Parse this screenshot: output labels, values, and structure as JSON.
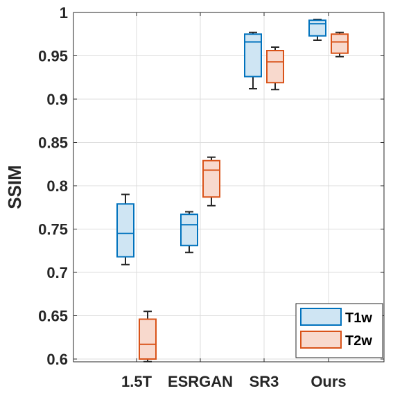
{
  "chart_data": {
    "type": "box",
    "ylabel": "SSIM",
    "xlabel": "",
    "ylim": [
      0.595,
      1.0
    ],
    "yticks": [
      "0.6",
      "0.65",
      "0.7",
      "0.75",
      "0.8",
      "0.85",
      "0.9",
      "0.95",
      "1"
    ],
    "categories": [
      "1.5T",
      "ESRGAN",
      "SR3",
      "Ours"
    ],
    "grid": true,
    "legend_position": "bottom-right",
    "series": [
      {
        "name": "T1w",
        "edge_color": "#0072BD",
        "fill_color": "#cfe5f3",
        "boxes": [
          {
            "whisker_low": 0.709,
            "q1": 0.718,
            "median": 0.745,
            "q3": 0.779,
            "whisker_high": 0.79
          },
          {
            "whisker_low": 0.723,
            "q1": 0.731,
            "median": 0.755,
            "q3": 0.767,
            "whisker_high": 0.77
          },
          {
            "whisker_low": 0.912,
            "q1": 0.926,
            "median": 0.966,
            "q3": 0.975,
            "whisker_high": 0.977
          },
          {
            "whisker_low": 0.968,
            "q1": 0.973,
            "median": 0.987,
            "q3": 0.991,
            "whisker_high": 0.992
          }
        ]
      },
      {
        "name": "T2w",
        "edge_color": "#D95319",
        "fill_color": "#f8d9cd",
        "boxes": [
          {
            "whisker_low": 0.597,
            "q1": 0.6,
            "median": 0.617,
            "q3": 0.646,
            "whisker_high": 0.655
          },
          {
            "whisker_low": 0.777,
            "q1": 0.787,
            "median": 0.818,
            "q3": 0.829,
            "whisker_high": 0.833
          },
          {
            "whisker_low": 0.911,
            "q1": 0.919,
            "median": 0.943,
            "q3": 0.956,
            "whisker_high": 0.96
          },
          {
            "whisker_low": 0.949,
            "q1": 0.953,
            "median": 0.966,
            "q3": 0.975,
            "whisker_high": 0.977
          }
        ]
      }
    ]
  }
}
